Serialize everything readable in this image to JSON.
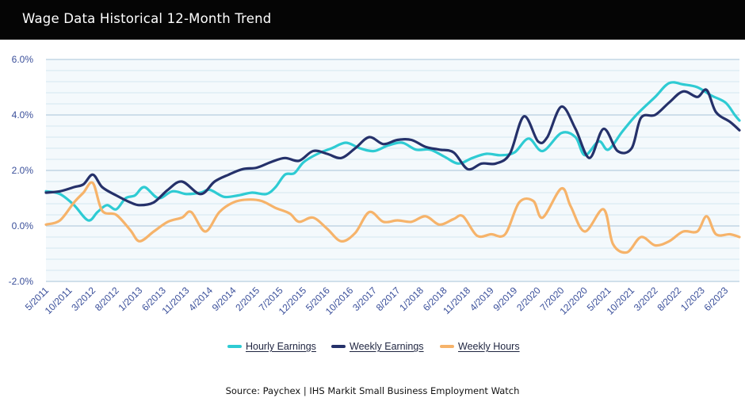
{
  "header": {
    "title": "Wage Data Historical 12-Month Trend"
  },
  "source": "Source: Paychex | IHS Markit Small Business Employment Watch",
  "colors": {
    "hourly": "#2ecbd3",
    "weekly_earnings": "#25316a",
    "weekly_hours": "#f6b36a",
    "grid_major": "#b7cfe0",
    "grid_minor": "#d5e6f1",
    "axis_text": "#3a4f9a"
  },
  "chart_data": {
    "type": "line",
    "title": "Wage Data Historical 12-Month Trend",
    "xlabel": "",
    "ylabel": "",
    "ylim": [
      -2.0,
      6.0
    ],
    "y_ticks": [
      -2.0,
      0.0,
      2.0,
      4.0,
      6.0
    ],
    "y_tick_labels": [
      "-2.0%",
      "0.0%",
      "2.0%",
      "4.0%",
      "6.0%"
    ],
    "x_tick_labels": [
      "5/2011",
      "10/2011",
      "3/2012",
      "8/2012",
      "1/2013",
      "6/2013",
      "11/2013",
      "4/2014",
      "9/2014",
      "2/2015",
      "7/2015",
      "12/2015",
      "5/2016",
      "10/2016",
      "3/2017",
      "8/2017",
      "1/2018",
      "6/2018",
      "11/2018",
      "4/2019",
      "9/2019",
      "2/2020",
      "7/2020",
      "12/2020",
      "5/2021",
      "10/2021",
      "3/2022",
      "8/2022",
      "1/2023",
      "6/2023"
    ],
    "x_start": "5/2011",
    "x_end": "9/2023",
    "grid": true,
    "legend_position": "bottom",
    "series": [
      {
        "name": "Hourly Earnings",
        "color": "#2ecbd3",
        "points": [
          [
            "5/2011",
            1.25
          ],
          [
            "8/2011",
            1.15
          ],
          [
            "11/2011",
            0.75
          ],
          [
            "2/2012",
            0.2
          ],
          [
            "4/2012",
            0.5
          ],
          [
            "6/2012",
            0.75
          ],
          [
            "8/2012",
            0.6
          ],
          [
            "10/2012",
            1.0
          ],
          [
            "12/2012",
            1.1
          ],
          [
            "2/2013",
            1.4
          ],
          [
            "5/2013",
            1.0
          ],
          [
            "8/2013",
            1.25
          ],
          [
            "11/2013",
            1.15
          ],
          [
            "2/2014",
            1.2
          ],
          [
            "4/2014",
            1.3
          ],
          [
            "7/2014",
            1.05
          ],
          [
            "10/2014",
            1.1
          ],
          [
            "1/2015",
            1.2
          ],
          [
            "4/2015",
            1.15
          ],
          [
            "6/2015",
            1.4
          ],
          [
            "8/2015",
            1.85
          ],
          [
            "10/2015",
            1.9
          ],
          [
            "12/2015",
            2.3
          ],
          [
            "3/2016",
            2.6
          ],
          [
            "6/2016",
            2.8
          ],
          [
            "9/2016",
            3.0
          ],
          [
            "12/2016",
            2.8
          ],
          [
            "3/2017",
            2.7
          ],
          [
            "6/2017",
            2.9
          ],
          [
            "9/2017",
            3.0
          ],
          [
            "12/2017",
            2.75
          ],
          [
            "3/2018",
            2.75
          ],
          [
            "6/2018",
            2.5
          ],
          [
            "9/2018",
            2.25
          ],
          [
            "12/2018",
            2.45
          ],
          [
            "3/2019",
            2.6
          ],
          [
            "6/2019",
            2.55
          ],
          [
            "9/2019",
            2.65
          ],
          [
            "12/2019",
            3.15
          ],
          [
            "3/2020",
            2.7
          ],
          [
            "7/2020",
            3.35
          ],
          [
            "10/2020",
            3.2
          ],
          [
            "12/2020",
            2.55
          ],
          [
            "3/2021",
            3.05
          ],
          [
            "5/2021",
            2.75
          ],
          [
            "8/2021",
            3.4
          ],
          [
            "11/2021",
            4.0
          ],
          [
            "3/2022",
            4.65
          ],
          [
            "6/2022",
            5.15
          ],
          [
            "9/2022",
            5.1
          ],
          [
            "12/2022",
            5.0
          ],
          [
            "3/2023",
            4.7
          ],
          [
            "6/2023",
            4.45
          ],
          [
            "8/2023",
            4.0
          ],
          [
            "9/2023",
            3.8
          ]
        ]
      },
      {
        "name": "Weekly Earnings",
        "color": "#25316a",
        "points": [
          [
            "5/2011",
            1.2
          ],
          [
            "8/2011",
            1.25
          ],
          [
            "11/2011",
            1.4
          ],
          [
            "1/2012",
            1.5
          ],
          [
            "3/2012",
            1.85
          ],
          [
            "5/2012",
            1.4
          ],
          [
            "8/2012",
            1.1
          ],
          [
            "11/2012",
            0.85
          ],
          [
            "1/2013",
            0.75
          ],
          [
            "4/2013",
            0.85
          ],
          [
            "7/2013",
            1.3
          ],
          [
            "10/2013",
            1.6
          ],
          [
            "2/2014",
            1.15
          ],
          [
            "5/2014",
            1.6
          ],
          [
            "8/2014",
            1.85
          ],
          [
            "11/2014",
            2.05
          ],
          [
            "2/2015",
            2.1
          ],
          [
            "5/2015",
            2.3
          ],
          [
            "8/2015",
            2.45
          ],
          [
            "11/2015",
            2.35
          ],
          [
            "2/2016",
            2.7
          ],
          [
            "5/2016",
            2.6
          ],
          [
            "8/2016",
            2.45
          ],
          [
            "11/2016",
            2.8
          ],
          [
            "2/2017",
            3.2
          ],
          [
            "5/2017",
            2.95
          ],
          [
            "8/2017",
            3.1
          ],
          [
            "11/2017",
            3.1
          ],
          [
            "2/2018",
            2.85
          ],
          [
            "5/2018",
            2.75
          ],
          [
            "8/2018",
            2.65
          ],
          [
            "11/2018",
            2.05
          ],
          [
            "2/2019",
            2.25
          ],
          [
            "5/2019",
            2.25
          ],
          [
            "8/2019",
            2.6
          ],
          [
            "11/2019",
            3.95
          ],
          [
            "2/2020",
            3.05
          ],
          [
            "4/2020",
            3.2
          ],
          [
            "7/2020",
            4.3
          ],
          [
            "10/2020",
            3.5
          ],
          [
            "1/2021",
            2.45
          ],
          [
            "4/2021",
            3.5
          ],
          [
            "7/2021",
            2.7
          ],
          [
            "10/2021",
            2.8
          ],
          [
            "12/2021",
            3.9
          ],
          [
            "3/2022",
            4.0
          ],
          [
            "6/2022",
            4.45
          ],
          [
            "9/2022",
            4.85
          ],
          [
            "12/2022",
            4.65
          ],
          [
            "2/2023",
            4.9
          ],
          [
            "4/2023",
            4.1
          ],
          [
            "7/2023",
            3.75
          ],
          [
            "9/2023",
            3.45
          ]
        ]
      },
      {
        "name": "Weekly Hours",
        "color": "#f6b36a",
        "points": [
          [
            "5/2011",
            0.05
          ],
          [
            "8/2011",
            0.2
          ],
          [
            "11/2011",
            0.85
          ],
          [
            "1/2012",
            1.2
          ],
          [
            "3/2012",
            1.55
          ],
          [
            "5/2012",
            0.55
          ],
          [
            "8/2012",
            0.4
          ],
          [
            "11/2012",
            -0.15
          ],
          [
            "1/2013",
            -0.55
          ],
          [
            "4/2013",
            -0.2
          ],
          [
            "7/2013",
            0.15
          ],
          [
            "10/2013",
            0.3
          ],
          [
            "12/2013",
            0.5
          ],
          [
            "3/2014",
            -0.2
          ],
          [
            "6/2014",
            0.5
          ],
          [
            "9/2014",
            0.85
          ],
          [
            "12/2014",
            0.95
          ],
          [
            "3/2015",
            0.9
          ],
          [
            "6/2015",
            0.65
          ],
          [
            "9/2015",
            0.45
          ],
          [
            "11/2015",
            0.15
          ],
          [
            "2/2016",
            0.3
          ],
          [
            "5/2016",
            -0.1
          ],
          [
            "8/2016",
            -0.55
          ],
          [
            "11/2016",
            -0.25
          ],
          [
            "2/2017",
            0.5
          ],
          [
            "5/2017",
            0.15
          ],
          [
            "8/2017",
            0.2
          ],
          [
            "11/2017",
            0.15
          ],
          [
            "2/2018",
            0.35
          ],
          [
            "5/2018",
            0.05
          ],
          [
            "8/2018",
            0.25
          ],
          [
            "10/2018",
            0.35
          ],
          [
            "1/2019",
            -0.35
          ],
          [
            "4/2019",
            -0.3
          ],
          [
            "7/2019",
            -0.3
          ],
          [
            "10/2019",
            0.85
          ],
          [
            "1/2020",
            0.9
          ],
          [
            "3/2020",
            0.3
          ],
          [
            "7/2020",
            1.35
          ],
          [
            "9/2020",
            0.7
          ],
          [
            "12/2020",
            -0.2
          ],
          [
            "4/2021",
            0.6
          ],
          [
            "6/2021",
            -0.65
          ],
          [
            "9/2021",
            -0.95
          ],
          [
            "12/2021",
            -0.4
          ],
          [
            "3/2022",
            -0.7
          ],
          [
            "6/2022",
            -0.55
          ],
          [
            "9/2022",
            -0.2
          ],
          [
            "12/2022",
            -0.2
          ],
          [
            "2/2023",
            0.35
          ],
          [
            "4/2023",
            -0.3
          ],
          [
            "7/2023",
            -0.3
          ],
          [
            "9/2023",
            -0.4
          ]
        ]
      }
    ]
  }
}
